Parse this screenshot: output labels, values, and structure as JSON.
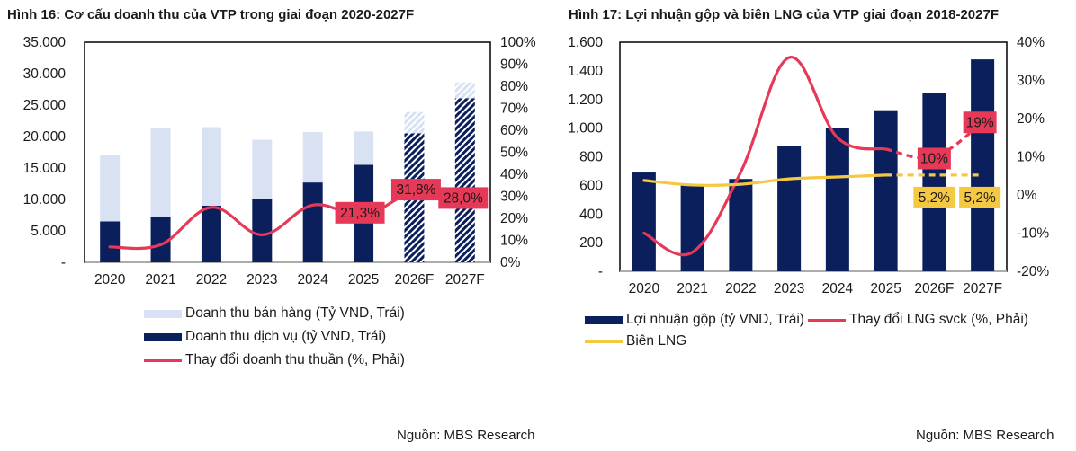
{
  "charts": {
    "left": {
      "title": "Hình 16: Cơ cấu doanh thu của VTP trong giai đoạn 2020-2027F",
      "source": "Nguồn: MBS Research",
      "legend": [
        {
          "label": "Doanh thu bán hàng (Tỷ VND, Trái)",
          "kind": "bar",
          "color": "#d9e2f3"
        },
        {
          "label": "Doanh thu dịch vụ (tỷ VND, Trái)",
          "kind": "bar",
          "color": "#0a1f5c"
        },
        {
          "label": "Thay đổi doanh thu thuần (%, Phải)",
          "kind": "line",
          "color": "#e63957"
        }
      ]
    },
    "right": {
      "title": "Hình 17: Lợi nhuận gộp và biên LNG của VTP giai đoạn 2018-2027F",
      "source": "Nguồn: MBS Research",
      "legend": [
        {
          "label": "Lợi nhuận gộp (tỷ VND, Trái)",
          "kind": "bar",
          "color": "#0a1f5c"
        },
        {
          "label": "Thay đổi LNG svck (%, Phải)",
          "kind": "line",
          "color": "#e63957"
        },
        {
          "label": "Biên LNG",
          "kind": "line",
          "color": "#f5c842"
        }
      ]
    }
  },
  "chart_data": [
    {
      "type": "bar",
      "title": "Hình 16: Cơ cấu doanh thu của VTP trong giai đoạn 2020-2027F",
      "categories": [
        "2020",
        "2021",
        "2022",
        "2023",
        "2024",
        "2025",
        "2026F",
        "2027F"
      ],
      "forecast_from_index": 6,
      "stacked": true,
      "left_axis": {
        "ylim": [
          0,
          35000
        ],
        "ticks": [
          "-",
          "5.000",
          "10.000",
          "15.000",
          "20.000",
          "25.000",
          "30.000",
          "35.000"
        ],
        "tick_values": [
          0,
          5000,
          10000,
          15000,
          20000,
          25000,
          30000,
          35000
        ]
      },
      "right_axis": {
        "ylim": [
          0,
          100
        ],
        "ticks": [
          "0%",
          "10%",
          "20%",
          "30%",
          "40%",
          "50%",
          "60%",
          "70%",
          "80%",
          "90%",
          "100%"
        ],
        "tick_values": [
          0,
          10,
          20,
          30,
          40,
          50,
          60,
          70,
          80,
          90,
          100
        ]
      },
      "series": [
        {
          "name": "Doanh thu dịch vụ (tỷ VND, Trái)",
          "axis": "left",
          "type": "bar",
          "color": "#0a1f5c",
          "values": [
            6500,
            7300,
            9000,
            10100,
            12700,
            15500,
            20500,
            26100
          ]
        },
        {
          "name": "Doanh thu bán hàng (Tỷ VND, Trái)",
          "axis": "left",
          "type": "bar",
          "color": "#d9e2f3",
          "values": [
            10600,
            14100,
            12500,
            9400,
            8000,
            5300,
            3400,
            2500
          ]
        },
        {
          "name": "Thay đổi doanh thu thuần (%, Phải)",
          "axis": "right",
          "type": "line",
          "color": "#e63957",
          "values": [
            7,
            8,
            25,
            12.5,
            26,
            21.3,
            31.8,
            28.0
          ],
          "data_labels": [
            null,
            null,
            null,
            null,
            null,
            "21,3%",
            "31,8%",
            "28,0%"
          ]
        }
      ],
      "legend_position": "bottom"
    },
    {
      "type": "bar",
      "title": "Hình 17: Lợi nhuận gộp và biên LNG của VTP giai đoạn 2018-2027F",
      "categories": [
        "2020",
        "2021",
        "2022",
        "2023",
        "2024",
        "2025",
        "2026F",
        "2027F"
      ],
      "forecast_from_index": 6,
      "left_axis": {
        "ylim": [
          0,
          1600
        ],
        "ticks": [
          "-",
          "200",
          "400",
          "600",
          "800",
          "1.000",
          "1.200",
          "1.400",
          "1.600"
        ],
        "tick_values": [
          0,
          200,
          400,
          600,
          800,
          1000,
          1200,
          1400,
          1600
        ]
      },
      "right_axis": {
        "ylim": [
          -20,
          40
        ],
        "ticks": [
          "-20%",
          "-10%",
          "0%",
          "10%",
          "20%",
          "30%",
          "40%"
        ],
        "tick_values": [
          -20,
          -10,
          0,
          10,
          20,
          30,
          40
        ]
      },
      "series": [
        {
          "name": "Lợi nhuận gộp (tỷ VND, Trái)",
          "axis": "left",
          "type": "bar",
          "color": "#0a1f5c",
          "values": [
            690,
            600,
            645,
            875,
            1000,
            1125,
            1245,
            1480
          ]
        },
        {
          "name": "Thay đổi LNG svck (%, Phải)",
          "axis": "right",
          "type": "line",
          "color": "#e63957",
          "values": [
            -10,
            -15,
            6,
            36,
            15,
            12,
            10,
            19
          ],
          "data_labels": [
            null,
            null,
            null,
            null,
            null,
            null,
            "10%",
            "19%"
          ]
        },
        {
          "name": "Biên LNG",
          "axis": "right",
          "type": "line",
          "color": "#f5c842",
          "values": [
            3.8,
            2.6,
            2.8,
            4.2,
            4.7,
            5.2,
            5.2,
            5.2
          ],
          "data_labels": [
            null,
            null,
            null,
            null,
            null,
            null,
            "5,2%",
            "5,2%"
          ]
        }
      ],
      "legend_position": "bottom"
    }
  ]
}
